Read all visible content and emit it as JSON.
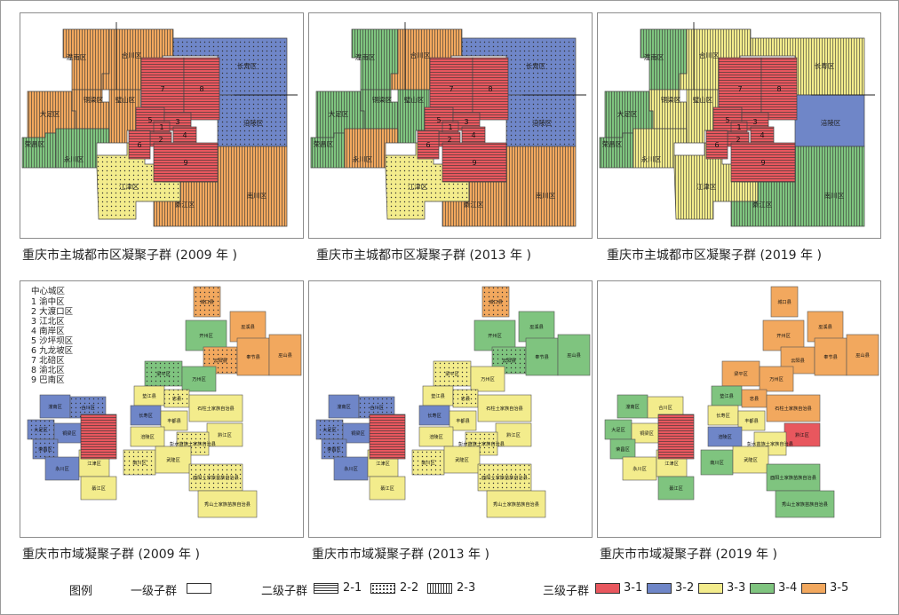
{
  "colors": {
    "c31": "#e8575e",
    "c32": "#6f86c8",
    "c33": "#f3ec8c",
    "c34": "#7fc47f",
    "c35": "#f2a85e"
  },
  "urban_labels": [
    "潼南区",
    "合川区",
    "长寿区",
    "铜梁区",
    "璧山区",
    "大足区",
    "涪陵区",
    "荣昌区",
    "永川区",
    "江津区",
    "綦江区",
    "南川区"
  ],
  "urban_numbers": [
    "7",
    "8",
    "5",
    "3",
    "4",
    "2",
    "6",
    "9",
    "1"
  ],
  "city_labels": [
    "城口县",
    "巫溪县",
    "开州区",
    "云阳县",
    "奉节县",
    "巫山县",
    "梁平区",
    "万州区",
    "垫江县",
    "忠县",
    "石柱土家族自治县",
    "潼南区",
    "合川区",
    "长寿区",
    "丰都县",
    "大足区",
    "铜梁区",
    "璧山区",
    "荣昌区",
    "涪陵区",
    "黔江区",
    "彭水苗族土家族自治县",
    "永川区",
    "江津区",
    "南川区",
    "武隆区",
    "綦江区",
    "酉阳土家族苗族自治县",
    "秀山土家族苗族自治县"
  ],
  "panels": [
    {
      "caption": "重庆市主城都市区凝聚子群 (2009 年 )"
    },
    {
      "caption": "重庆市主城都市区凝聚子群 (2013 年 )"
    },
    {
      "caption": "重庆市主城都市区凝聚子群 (2019 年 )"
    },
    {
      "caption": "重庆市市域凝聚子群 (2009 年 )"
    },
    {
      "caption": "重庆市市域凝聚子群 (2013 年 )"
    },
    {
      "caption": "重庆市市域凝聚子群 (2019 年 )"
    }
  ],
  "inset_legend": {
    "title": "中心城区",
    "items": [
      "1 渝中区",
      "2 大渡口区",
      "3 江北区",
      "4 南岸区",
      "5 沙坪坝区",
      "6 九龙坡区",
      "7 北碚区",
      "8 渝北区",
      "9 巴南区"
    ]
  },
  "legend": {
    "title": "图例",
    "level1": "一级子群",
    "level2": "二级子群",
    "level2_items": [
      "2-1",
      "2-2",
      "2-3"
    ],
    "level3": "三级子群",
    "level3_items": [
      "3-1",
      "3-2",
      "3-3",
      "3-4",
      "3-5"
    ]
  }
}
